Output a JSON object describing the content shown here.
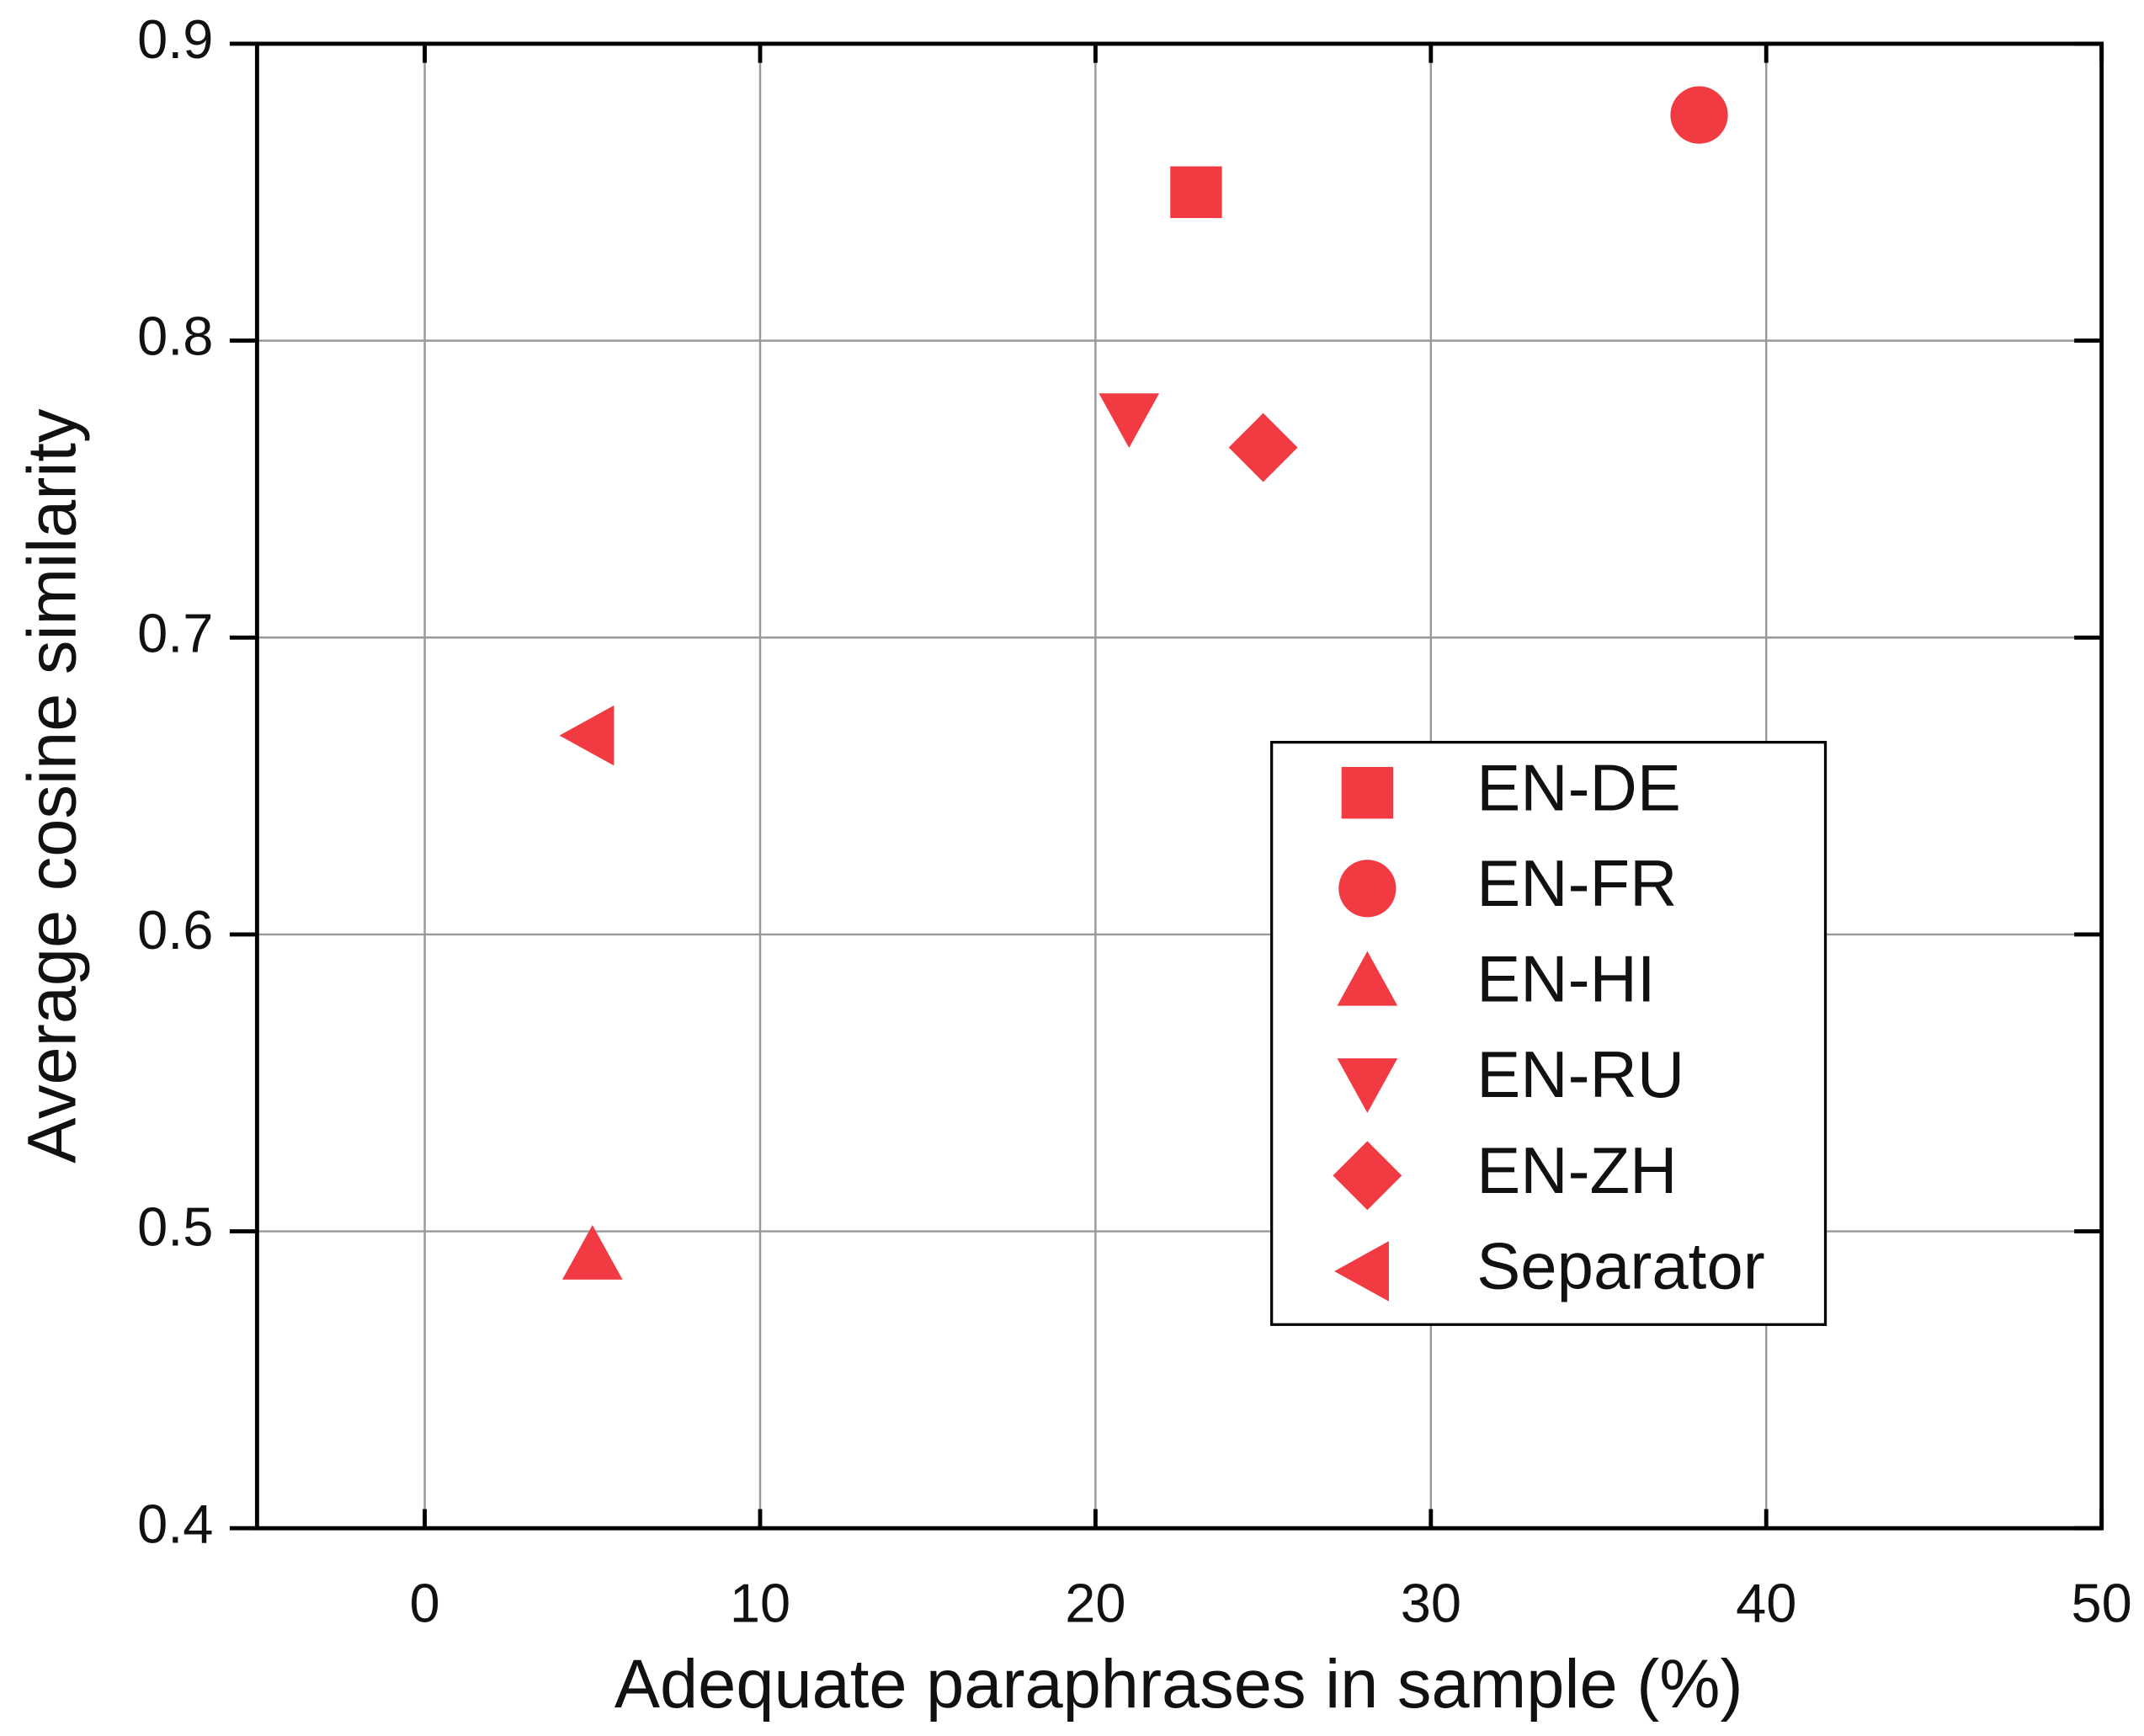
{
  "chart_data": {
    "type": "scatter",
    "x_label": "Adequate paraphrases in sample (%)",
    "y_label": "Average cosine similarity",
    "xlim": [
      -5,
      50
    ],
    "xticks": [
      0,
      10,
      20,
      30,
      40,
      50
    ],
    "ylim": [
      0.4,
      0.9
    ],
    "yticks": [
      0.4,
      0.5,
      0.6,
      0.7,
      0.8,
      0.9
    ],
    "grid": true,
    "legend": "right",
    "series": [
      {
        "name": "EN-DE",
        "color": "#f23a42",
        "marker": "square",
        "x": [
          23
        ],
        "values": [
          0.85
        ]
      },
      {
        "name": "EN-FR",
        "color": "#f23a42",
        "marker": "circle",
        "x": [
          38
        ],
        "values": [
          0.876
        ]
      },
      {
        "name": "EN-HI",
        "color": "#f23a42",
        "marker": "triangle-up",
        "x": [
          5
        ],
        "values": [
          0.491
        ]
      },
      {
        "name": "EN-RU",
        "color": "#f23a42",
        "marker": "triangle-down",
        "x": [
          21
        ],
        "values": [
          0.775
        ]
      },
      {
        "name": "EN-ZH",
        "color": "#f23a42",
        "marker": "diamond",
        "x": [
          25
        ],
        "values": [
          0.764
        ]
      },
      {
        "name": "Separator",
        "color": "#f23a42",
        "marker": "triangle-left",
        "x": [
          5
        ],
        "values": [
          0.667
        ]
      }
    ]
  }
}
